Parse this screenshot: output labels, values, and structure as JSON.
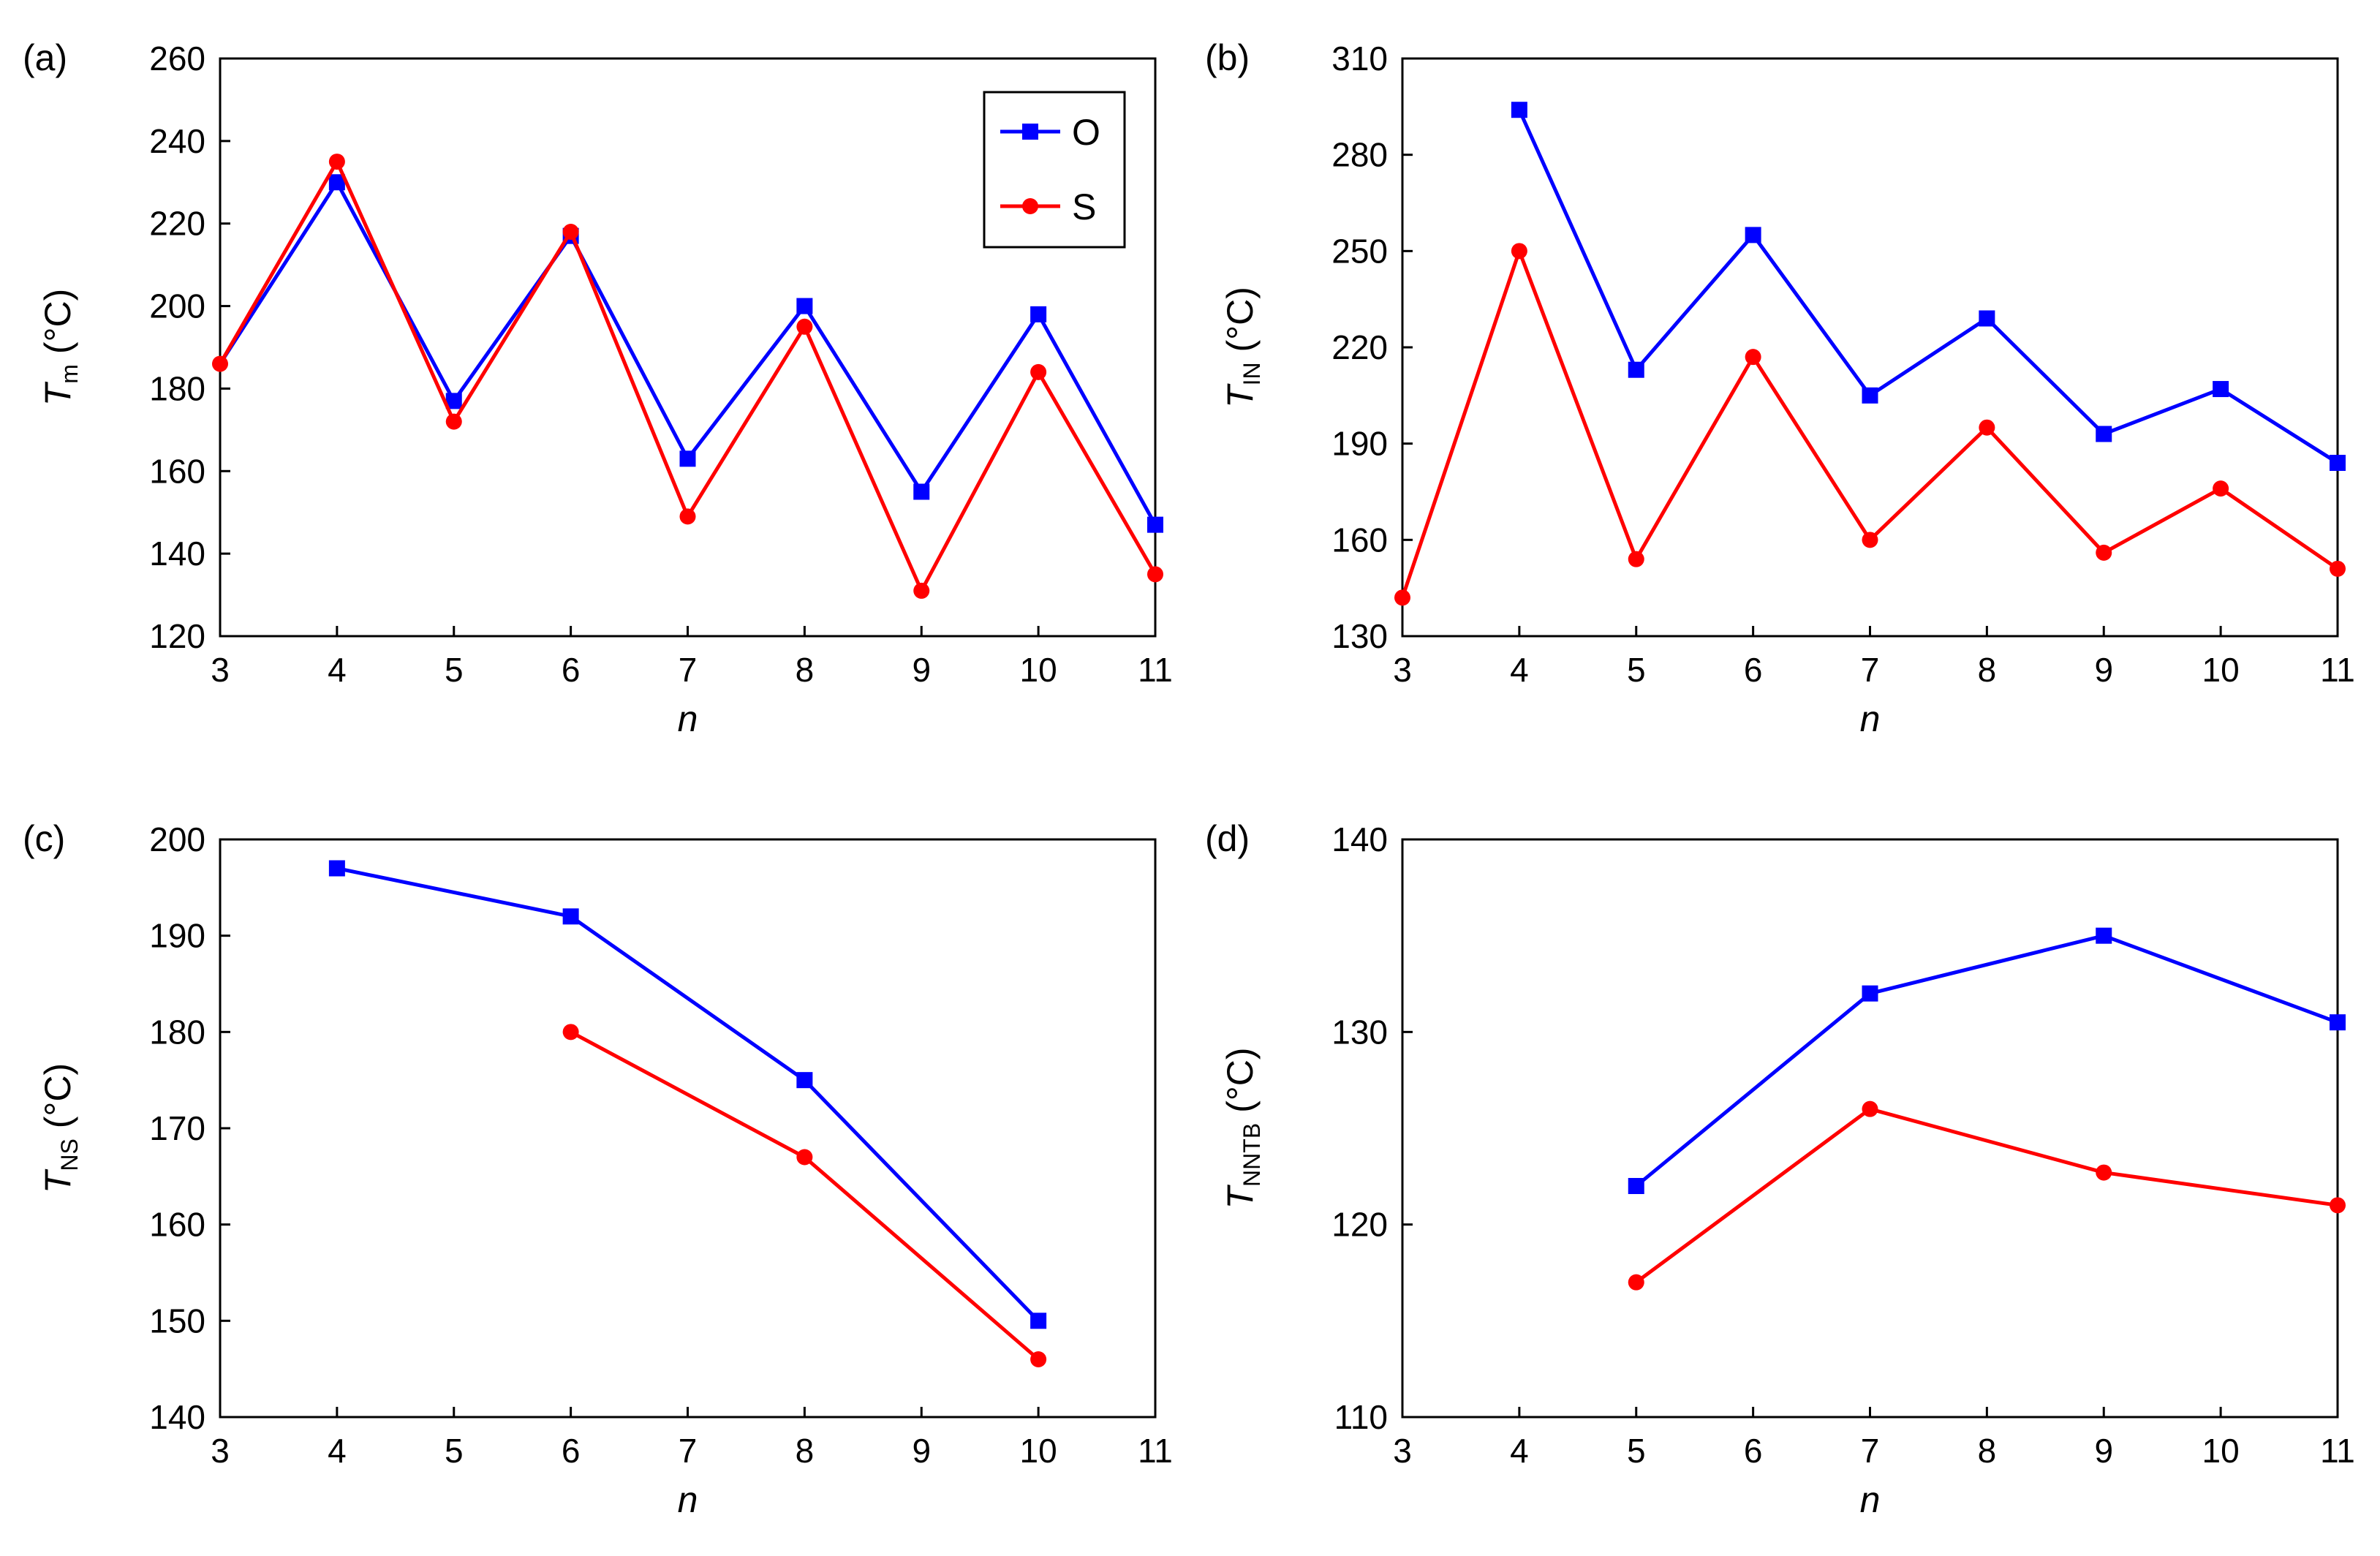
{
  "colors": {
    "O": "#0000ff",
    "S": "#ff0000",
    "axis": "#000000"
  },
  "legend": {
    "placement": "top-right of panel (a)",
    "entries": [
      "O",
      "S"
    ]
  },
  "chart_data": [
    {
      "type": "line",
      "panel_label": "(a)",
      "xlabel": "n",
      "ylabel_main": "T",
      "ylabel_sub": "m",
      "ylabel_unit": " (°C)",
      "xlim": [
        3,
        11
      ],
      "ylim": [
        120,
        260
      ],
      "xticks": [
        3,
        4,
        5,
        6,
        7,
        8,
        9,
        10,
        11
      ],
      "yticks": [
        120,
        140,
        160,
        180,
        200,
        220,
        240,
        260
      ],
      "series": [
        {
          "name": "O",
          "color": "#0000ff",
          "marker": "square",
          "x": [
            4,
            5,
            6,
            7,
            8,
            9,
            10,
            11
          ],
          "y": [
            230,
            177,
            217,
            163,
            200,
            155,
            198,
            147
          ],
          "prefix": [
            [
              3,
              186
            ]
          ]
        },
        {
          "name": "S",
          "color": "#ff0000",
          "marker": "circle",
          "x": [
            3,
            4,
            5,
            6,
            7,
            8,
            9,
            10,
            11
          ],
          "y": [
            186,
            235,
            172,
            218,
            149,
            195,
            131,
            184,
            135
          ]
        }
      ]
    },
    {
      "type": "line",
      "panel_label": "(b)",
      "xlabel": "n",
      "ylabel_main": "T",
      "ylabel_sub": "IN",
      "ylabel_unit": " (°C)",
      "xlim": [
        3,
        11
      ],
      "ylim": [
        130,
        310
      ],
      "xticks": [
        3,
        4,
        5,
        6,
        7,
        8,
        9,
        10,
        11
      ],
      "yticks": [
        130,
        160,
        190,
        220,
        250,
        280,
        310
      ],
      "series": [
        {
          "name": "O",
          "color": "#0000ff",
          "marker": "square",
          "x": [
            4,
            5,
            6,
            7,
            8,
            9,
            10,
            11
          ],
          "y": [
            294,
            213,
            255,
            205,
            229,
            193,
            207,
            184
          ]
        },
        {
          "name": "S",
          "color": "#ff0000",
          "marker": "circle",
          "x": [
            3,
            4,
            5,
            6,
            7,
            8,
            9,
            10,
            11
          ],
          "y": [
            142,
            250,
            154,
            217,
            160,
            195,
            156,
            176,
            151
          ]
        }
      ]
    },
    {
      "type": "line",
      "panel_label": "(c)",
      "xlabel": "n",
      "ylabel_main": "T",
      "ylabel_sub": "NS",
      "ylabel_unit": " (°C)",
      "xlim": [
        3,
        11
      ],
      "ylim": [
        140,
        200
      ],
      "xticks": [
        3,
        4,
        5,
        6,
        7,
        8,
        9,
        10,
        11
      ],
      "yticks": [
        140,
        150,
        160,
        170,
        180,
        190,
        200
      ],
      "series": [
        {
          "name": "O",
          "color": "#0000ff",
          "marker": "square",
          "x": [
            4,
            6,
            8,
            10
          ],
          "y": [
            197,
            192,
            175,
            150
          ]
        },
        {
          "name": "S",
          "color": "#ff0000",
          "marker": "circle",
          "x": [
            6,
            8,
            10
          ],
          "y": [
            180,
            167,
            146
          ]
        }
      ]
    },
    {
      "type": "line",
      "panel_label": "(d)",
      "xlabel": "n",
      "ylabel_main": "T",
      "ylabel_sub": "NNTB",
      "ylabel_unit": " (°C)",
      "xlim": [
        3,
        11
      ],
      "ylim": [
        110,
        140
      ],
      "xticks": [
        3,
        4,
        5,
        6,
        7,
        8,
        9,
        10,
        11
      ],
      "yticks": [
        110,
        120,
        130,
        140
      ],
      "series": [
        {
          "name": "O",
          "color": "#0000ff",
          "marker": "square",
          "x": [
            5,
            7,
            9,
            11
          ],
          "y": [
            122,
            132,
            135,
            130.5
          ]
        },
        {
          "name": "S",
          "color": "#ff0000",
          "marker": "circle",
          "x": [
            5,
            7,
            9,
            11
          ],
          "y": [
            117,
            126,
            122.7,
            121
          ]
        }
      ]
    }
  ]
}
